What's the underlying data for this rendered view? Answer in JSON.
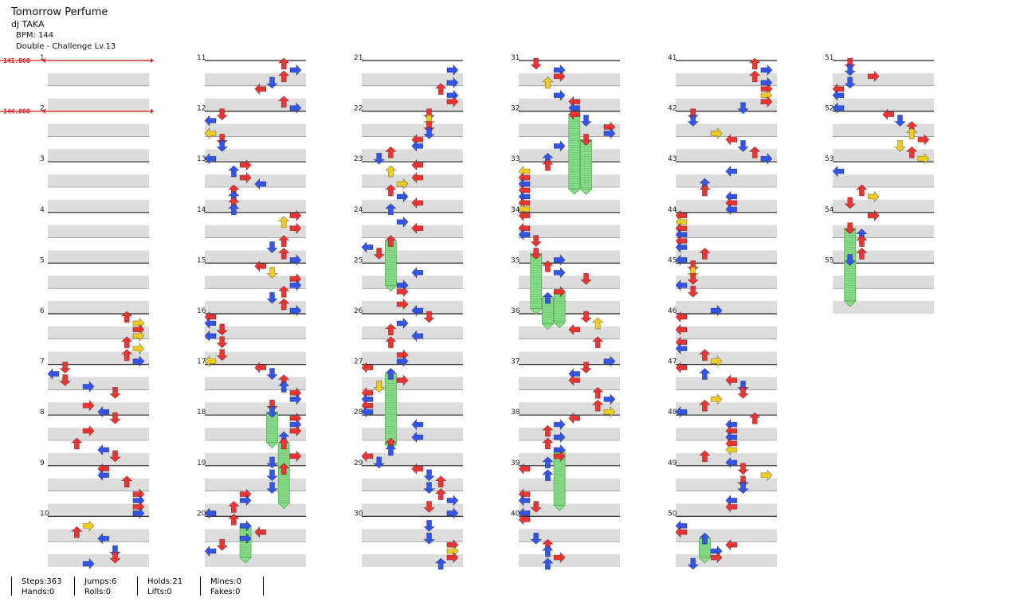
{
  "song": {
    "title": "Tomorrow Perfume",
    "artist": "dj TAKA",
    "bpm": "BPM: 144",
    "difficulty": "Double - Challenge  Lv.13"
  },
  "bpm_changes": [
    {
      "value": "141.800",
      "measure": 1
    },
    {
      "value": "144.000",
      "measure": 2
    }
  ],
  "measures": [
    "1",
    "2",
    "3",
    "4",
    "5",
    "6",
    "7",
    "8",
    "9",
    "10",
    "11",
    "12",
    "13",
    "14",
    "15",
    "16",
    "17",
    "18",
    "19",
    "20",
    "21",
    "22",
    "23",
    "24",
    "25",
    "26",
    "27",
    "28",
    "29",
    "30",
    "31",
    "32",
    "33",
    "34",
    "35",
    "36",
    "37",
    "38",
    "39",
    "40",
    "41",
    "42",
    "43",
    "44",
    "45",
    "46",
    "47",
    "48",
    "49",
    "50",
    "51",
    "52",
    "53",
    "54",
    "55"
  ],
  "stats": {
    "steps": "Steps:363",
    "hands": "Hands:0",
    "jumps": "Jumps:6",
    "rolls": "Rolls:0",
    "holds": "Holds:21",
    "lifts": "Lifts:0",
    "mines": "Mines:0",
    "fakes": "Fakes:0"
  },
  "colors": {
    "quarter": "#ee3333",
    "eighth": "#3355ee",
    "sixteenth": "#eecc22",
    "hold": "#88dd88",
    "band": "#dddddd"
  },
  "icons": [
    "arrow-left-icon",
    "arrow-down-icon",
    "arrow-up-icon",
    "arrow-right-icon",
    "hold-body-icon"
  ]
}
